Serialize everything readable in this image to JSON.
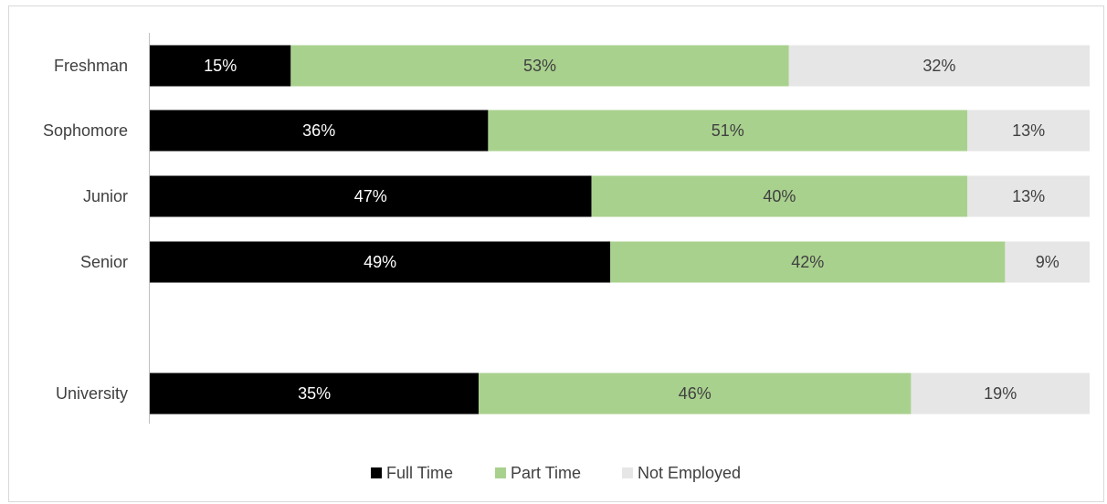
{
  "chart_data": {
    "type": "bar",
    "orientation": "horizontal",
    "stacked": "percent",
    "categories": [
      "Freshman",
      "Sophomore",
      "Junior",
      "Senior",
      "University"
    ],
    "series": [
      {
        "name": "Full Time",
        "values": [
          15,
          36,
          47,
          49,
          35
        ],
        "color": "#000000",
        "label_color": "#ffffff"
      },
      {
        "name": "Part Time",
        "values": [
          53,
          51,
          40,
          42,
          46
        ],
        "color": "#a9d18e",
        "label_color": "#404040"
      },
      {
        "name": "Not Employed",
        "values": [
          32,
          13,
          13,
          9,
          19
        ],
        "color": "#e7e6e6",
        "label_color": "#404040"
      }
    ],
    "value_suffix": "%",
    "xlim": [
      0,
      100
    ],
    "grid": false,
    "legend_position": "bottom"
  }
}
